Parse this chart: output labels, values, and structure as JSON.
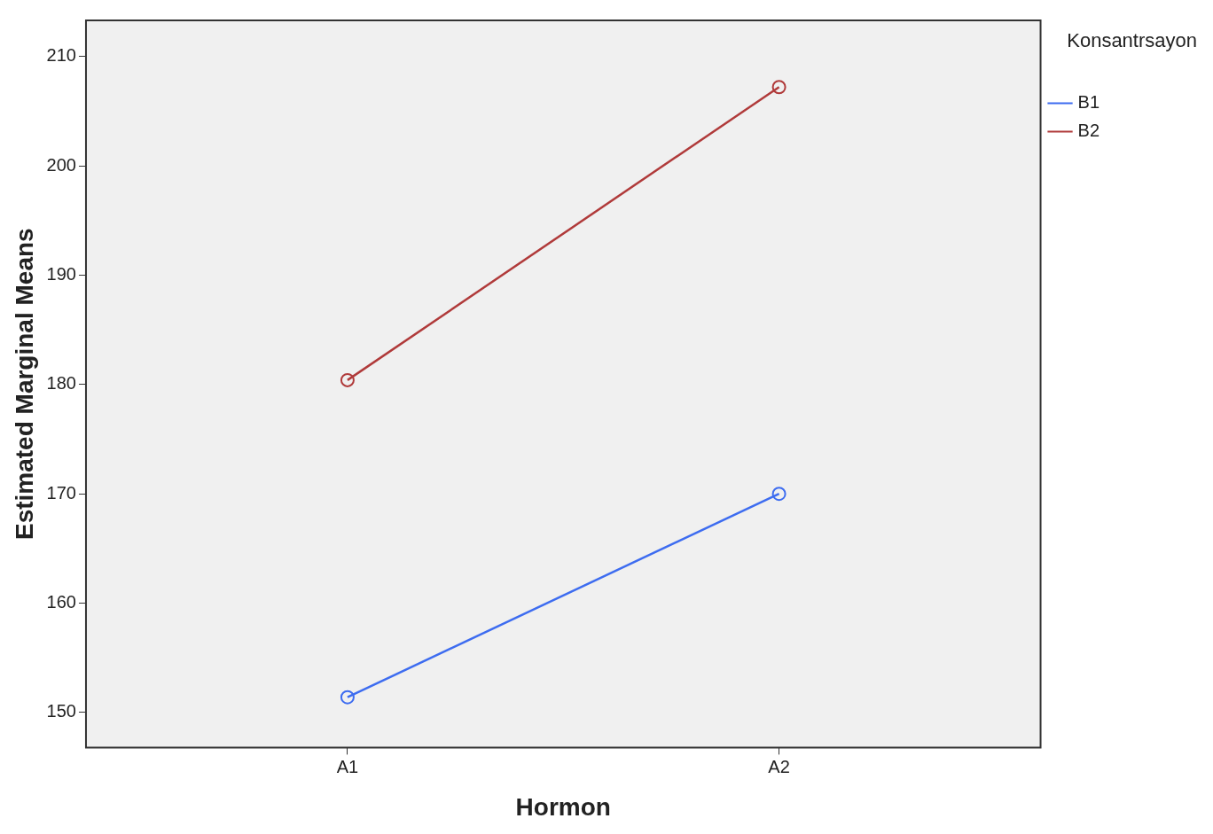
{
  "chart_data": {
    "type": "line",
    "xlabel": "Hormon",
    "ylabel": "Estimated Marginal Means",
    "legend_title": "Konsantrsayon",
    "categories": [
      "A1",
      "A2"
    ],
    "series": [
      {
        "name": "B1",
        "color": "#3d6cf0",
        "values": [
          151.4,
          170.0
        ]
      },
      {
        "name": "B2",
        "color": "#b03a3a",
        "values": [
          180.4,
          207.2
        ]
      }
    ],
    "ylim": [
      146.8,
      213.3
    ],
    "yticks": [
      150,
      160,
      170,
      180,
      190,
      200,
      210
    ],
    "grid": false,
    "legend": "top right",
    "marker": "circle",
    "line_style": "solid"
  }
}
